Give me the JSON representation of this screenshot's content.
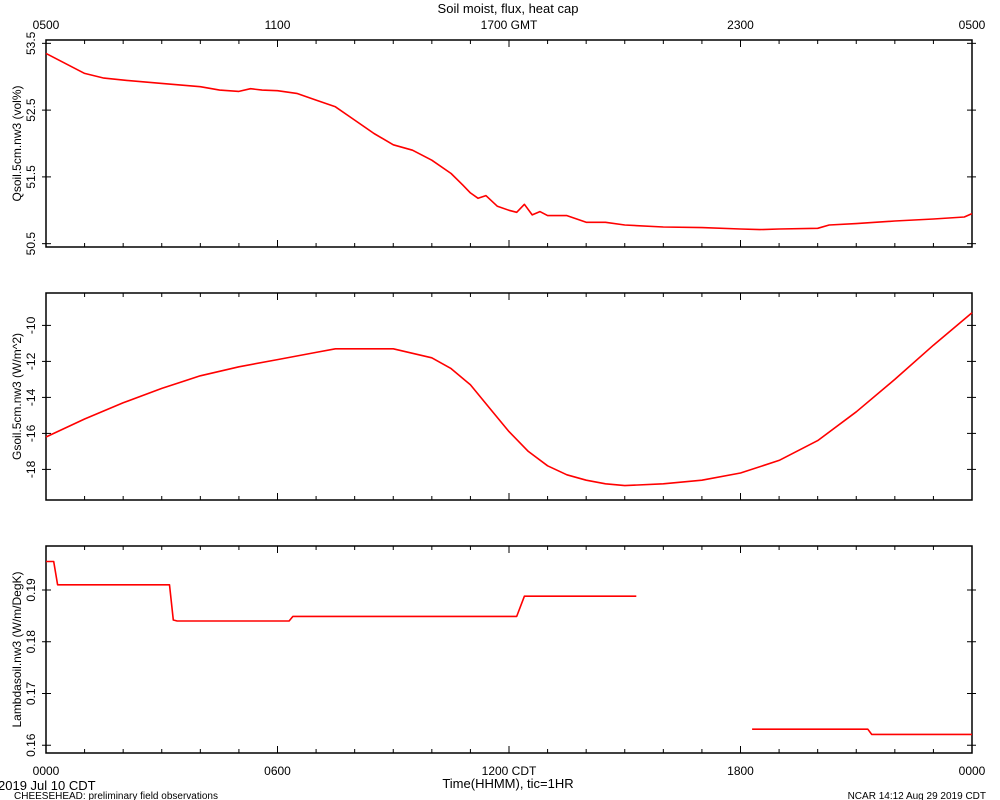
{
  "chart_data": {
    "type": "line",
    "title": "Soil moist, flux, heat cap",
    "top_axis": {
      "label_suffix": "GMT",
      "ticks": [
        {
          "hour": 0,
          "label": "0500"
        },
        {
          "hour": 6,
          "label": "1100"
        },
        {
          "hour": 12,
          "label": "1700 GMT"
        },
        {
          "hour": 18,
          "label": "2300"
        },
        {
          "hour": 24,
          "label": "0500"
        }
      ]
    },
    "bottom_axis": {
      "label": "Time(HHMM), tic=1HR",
      "ticks": [
        {
          "hour": 0,
          "label": "0000"
        },
        {
          "hour": 6,
          "label": "0600"
        },
        {
          "hour": 12,
          "label": "1200 CDT"
        },
        {
          "hour": 18,
          "label": "1800"
        },
        {
          "hour": 24,
          "label": "0000"
        }
      ],
      "xlim": [
        0,
        24
      ]
    },
    "panels": [
      {
        "ylabel": "Qsoil.5cm.nw3 (vol%)",
        "ylim": [
          50.45,
          53.55
        ],
        "yticks": [
          50.5,
          51.5,
          52.5,
          53.5
        ],
        "ytick_labels": [
          "50.5",
          "51.5",
          "52.5",
          "53.5"
        ],
        "color": "#ff0000",
        "segments": [
          [
            [
              0.0,
              53.35
            ],
            [
              0.5,
              53.2
            ],
            [
              1.0,
              53.05
            ],
            [
              1.5,
              52.98
            ],
            [
              2.0,
              52.95
            ],
            [
              3.0,
              52.9
            ],
            [
              4.0,
              52.85
            ],
            [
              4.5,
              52.8
            ],
            [
              5.0,
              52.78
            ],
            [
              5.3,
              52.82
            ],
            [
              5.6,
              52.8
            ],
            [
              6.0,
              52.79
            ],
            [
              6.5,
              52.75
            ],
            [
              7.0,
              52.65
            ],
            [
              7.5,
              52.55
            ],
            [
              8.0,
              52.35
            ],
            [
              8.5,
              52.15
            ],
            [
              9.0,
              51.98
            ],
            [
              9.5,
              51.9
            ],
            [
              10.0,
              51.75
            ],
            [
              10.5,
              51.55
            ],
            [
              10.8,
              51.38
            ],
            [
              11.0,
              51.26
            ],
            [
              11.2,
              51.18
            ],
            [
              11.4,
              51.22
            ],
            [
              11.7,
              51.06
            ],
            [
              12.0,
              51.0
            ],
            [
              12.2,
              50.97
            ],
            [
              12.4,
              51.09
            ],
            [
              12.6,
              50.93
            ],
            [
              12.8,
              50.98
            ],
            [
              13.0,
              50.92
            ],
            [
              13.5,
              50.92
            ],
            [
              14.0,
              50.82
            ],
            [
              14.5,
              50.82
            ],
            [
              15.0,
              50.78
            ],
            [
              16.0,
              50.75
            ],
            [
              17.0,
              50.74
            ],
            [
              18.0,
              50.72
            ],
            [
              18.5,
              50.71
            ],
            [
              19.0,
              50.72
            ],
            [
              20.0,
              50.73
            ],
            [
              20.3,
              50.78
            ],
            [
              21.0,
              50.8
            ],
            [
              22.0,
              50.84
            ],
            [
              23.0,
              50.87
            ],
            [
              23.8,
              50.9
            ],
            [
              24.0,
              50.95
            ]
          ]
        ]
      },
      {
        "ylabel": "Gsoil.5cm.nw3 (W/m^2)",
        "ylim": [
          -19.7,
          -8.2
        ],
        "yticks": [
          -18,
          -16,
          -14,
          -12,
          -10
        ],
        "ytick_labels": [
          "-18",
          "-16",
          "-14",
          "-12",
          "-10"
        ],
        "color": "#ff0000",
        "segments": [
          [
            [
              0.0,
              -16.2
            ],
            [
              1.0,
              -15.2
            ],
            [
              2.0,
              -14.3
            ],
            [
              3.0,
              -13.5
            ],
            [
              4.0,
              -12.8
            ],
            [
              5.0,
              -12.3
            ],
            [
              6.0,
              -11.9
            ],
            [
              7.0,
              -11.5
            ],
            [
              7.5,
              -11.3
            ],
            [
              9.0,
              -11.3
            ],
            [
              10.0,
              -11.8
            ],
            [
              10.5,
              -12.4
            ],
            [
              11.0,
              -13.3
            ],
            [
              11.5,
              -14.6
            ],
            [
              12.0,
              -15.9
            ],
            [
              12.5,
              -17.0
            ],
            [
              13.0,
              -17.8
            ],
            [
              13.5,
              -18.3
            ],
            [
              14.0,
              -18.6
            ],
            [
              14.5,
              -18.8
            ],
            [
              15.0,
              -18.9
            ],
            [
              16.0,
              -18.8
            ],
            [
              17.0,
              -18.6
            ],
            [
              18.0,
              -18.2
            ],
            [
              19.0,
              -17.5
            ],
            [
              20.0,
              -16.4
            ],
            [
              21.0,
              -14.8
            ],
            [
              22.0,
              -13.0
            ],
            [
              23.0,
              -11.1
            ],
            [
              24.0,
              -9.3
            ]
          ]
        ]
      },
      {
        "ylabel": "Lambdasoil.nw3 (W/m/DegK)",
        "ylim": [
          0.1585,
          0.1985
        ],
        "yticks": [
          0.16,
          0.17,
          0.18,
          0.19
        ],
        "ytick_labels": [
          "0.16",
          "0.17",
          "0.18",
          "0.19"
        ],
        "color": "#ff0000",
        "segments": [
          [
            [
              0.0,
              0.1955
            ],
            [
              0.2,
              0.1955
            ],
            [
              0.3,
              0.191
            ],
            [
              3.2,
              0.191
            ],
            [
              3.3,
              0.1842
            ],
            [
              3.4,
              0.184
            ],
            [
              6.3,
              0.184
            ],
            [
              6.4,
              0.1849
            ],
            [
              12.2,
              0.1849
            ],
            [
              12.4,
              0.1888
            ],
            [
              15.3,
              0.1888
            ]
          ],
          [
            [
              18.3,
              0.1631
            ],
            [
              21.3,
              0.1631
            ],
            [
              21.4,
              0.1621
            ],
            [
              24.0,
              0.1621
            ]
          ]
        ]
      }
    ]
  },
  "footer": {
    "date_label": "2019 Jul 10 CDT",
    "project_label": "CHEESEHEAD: preliminary field observations",
    "credit_label": "NCAR 14:12 Aug 29 2019 CDT"
  }
}
